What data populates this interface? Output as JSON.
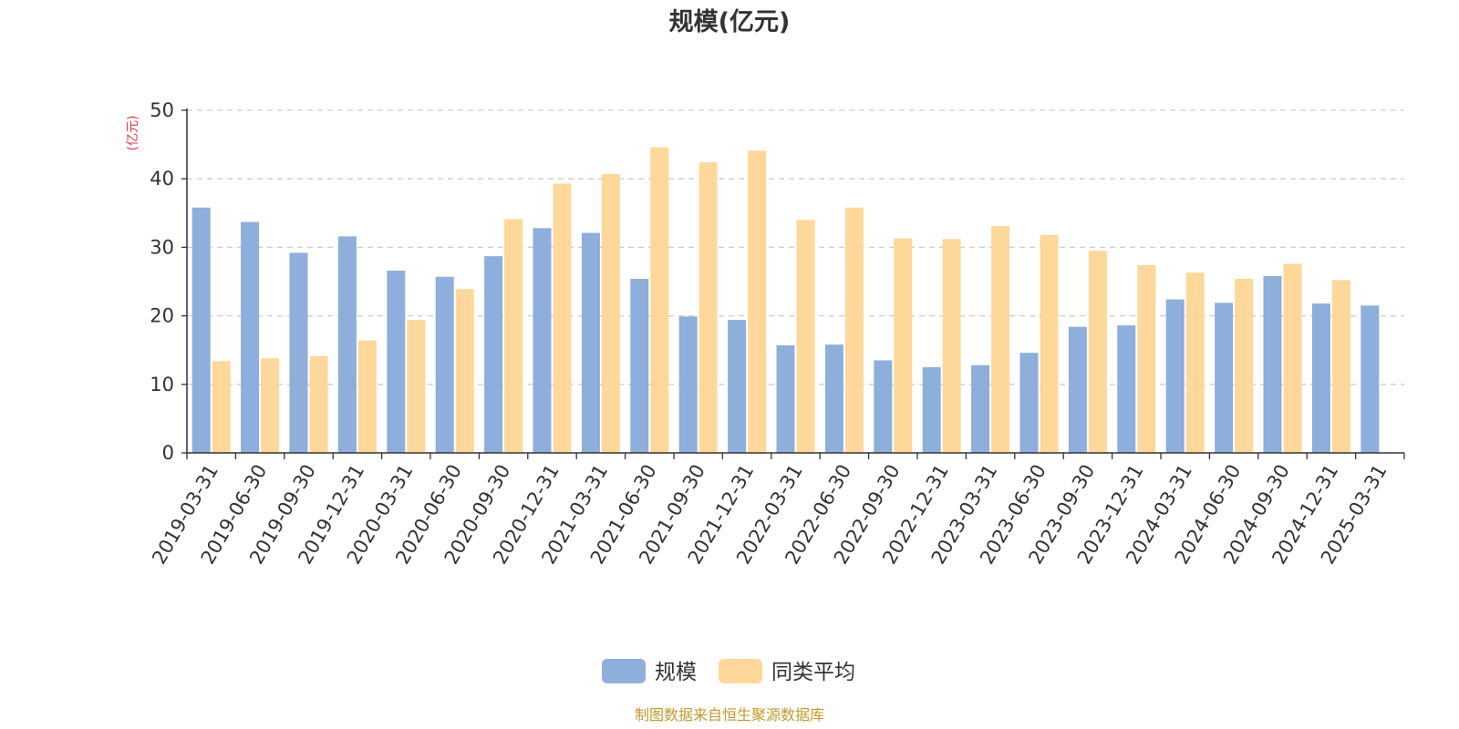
{
  "chart_data": {
    "type": "bar",
    "title": "规模(亿元)",
    "ylabel": "(亿元)",
    "xlabel": "",
    "ylim": [
      0,
      50
    ],
    "yticks": [
      0,
      10,
      20,
      30,
      40,
      50
    ],
    "grid": true,
    "legend_position": "bottom-center",
    "categories": [
      "2019-03-31",
      "2019-06-30",
      "2019-09-30",
      "2019-12-31",
      "2020-03-31",
      "2020-06-30",
      "2020-09-30",
      "2020-12-31",
      "2021-03-31",
      "2021-06-30",
      "2021-09-30",
      "2021-12-31",
      "2022-03-31",
      "2022-06-30",
      "2022-09-30",
      "2022-12-31",
      "2023-03-31",
      "2023-06-30",
      "2023-09-30",
      "2023-12-31",
      "2024-03-31",
      "2024-06-30",
      "2024-09-30",
      "2024-12-31",
      "2025-03-31"
    ],
    "series": [
      {
        "name": "规模",
        "color": "#8eaedb",
        "values": [
          35.8,
          33.7,
          29.2,
          31.6,
          26.6,
          25.7,
          28.7,
          32.8,
          32.1,
          25.4,
          19.9,
          19.4,
          15.7,
          15.8,
          13.5,
          12.5,
          12.8,
          14.6,
          18.4,
          18.6,
          22.4,
          21.9,
          25.8,
          21.8,
          21.5
        ]
      },
      {
        "name": "同类平均",
        "color": "#fdd89a",
        "values": [
          13.4,
          13.8,
          14.1,
          16.4,
          19.4,
          23.9,
          34.1,
          39.3,
          40.7,
          44.6,
          42.4,
          44.1,
          34.0,
          35.8,
          31.3,
          31.2,
          33.1,
          31.8,
          29.5,
          27.4,
          26.3,
          25.4,
          27.6,
          25.2,
          null
        ]
      }
    ]
  },
  "footer": {
    "source": "制图数据来自恒生聚源数据库"
  }
}
